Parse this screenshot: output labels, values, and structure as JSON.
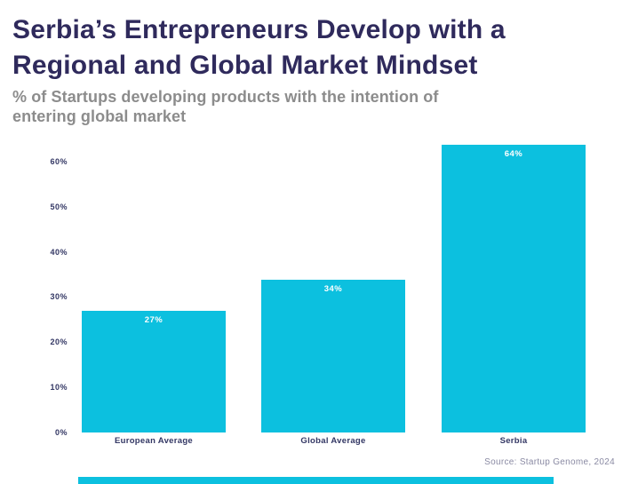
{
  "header": {
    "title_line1": "Serbia’s Entrepreneurs Develop with a",
    "title_line2": "Regional and Global Market Mindset",
    "subtitle_line1": "% of Startups developing products with the intention of",
    "subtitle_line2": "entering global market"
  },
  "chart_data": {
    "type": "bar",
    "title": "Serbia’s Entrepreneurs Develop with a Regional and Global Market Mindset",
    "subtitle": "% of Startups developing products with the intention of entering global market",
    "categories": [
      "European Average",
      "Global Average",
      "Serbia"
    ],
    "values": [
      27,
      34,
      64
    ],
    "value_labels": [
      "27%",
      "34%",
      "64%"
    ],
    "y_ticks": [
      "0%",
      "10%",
      "20%",
      "30%",
      "40%",
      "50%",
      "60%"
    ],
    "y_tick_values": [
      0,
      10,
      20,
      30,
      40,
      50,
      60
    ],
    "ylim": [
      0,
      65
    ],
    "xlabel": "",
    "ylabel": "",
    "grid": false,
    "legend": false,
    "bar_color": "#0cc0df",
    "value_label_color": "#ffffff",
    "axis_label_color": "#333764"
  },
  "footer": {
    "source": "Source: Startup Genome, 2024"
  },
  "colors": {
    "title": "#2f2a5c",
    "subtitle": "#8c8c8c",
    "accent_cyan": "#0cc0df",
    "background": "#ffffff"
  }
}
